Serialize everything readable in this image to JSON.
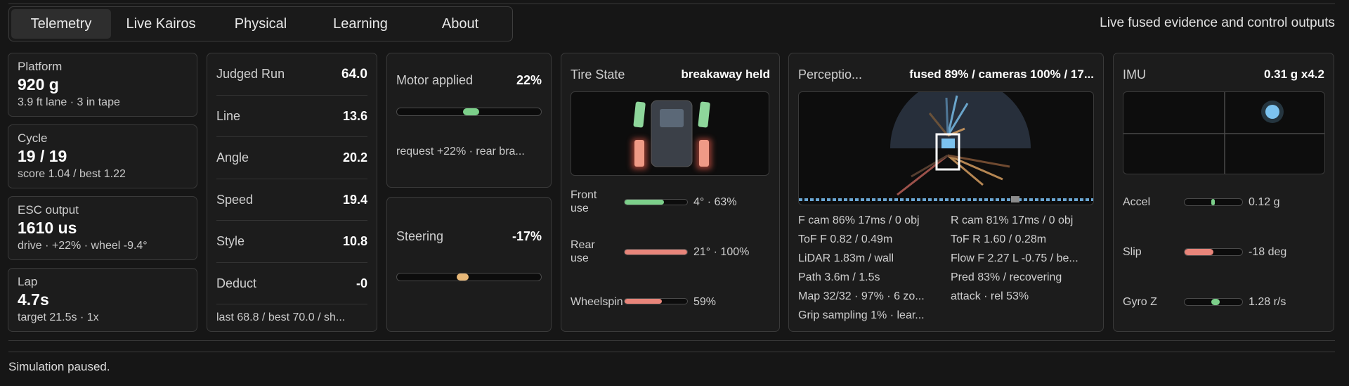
{
  "tabs": [
    "Telemetry",
    "Live Kairos",
    "Physical",
    "Learning",
    "About"
  ],
  "active_tab": "Telemetry",
  "header_subtitle": "Live fused evidence and control outputs",
  "stats": [
    {
      "label": "Platform",
      "value": "920 g",
      "detail": "3.9 ft lane · 3 in tape"
    },
    {
      "label": "Cycle",
      "value": "19 / 19",
      "detail": "score 1.04 / best 1.22"
    },
    {
      "label": "ESC output",
      "value": "1610 us",
      "detail": "drive · +22% · wheel -9.4°"
    },
    {
      "label": "Lap",
      "value": "4.7s",
      "detail": "target 21.5s · 1x"
    }
  ],
  "judged": {
    "title": "Judged Run",
    "score": "64.0",
    "rows": [
      {
        "label": "Line",
        "value": "13.6"
      },
      {
        "label": "Angle",
        "value": "20.2"
      },
      {
        "label": "Speed",
        "value": "19.4"
      },
      {
        "label": "Style",
        "value": "10.8"
      },
      {
        "label": "Deduct",
        "value": "-0"
      }
    ],
    "footer": "last 68.8 / best 70.0 / sh..."
  },
  "motor": {
    "label": "Motor applied",
    "value": "22%",
    "level": 0.22,
    "detail": "request +22% · rear bra...",
    "color": "#7ccf8a"
  },
  "steering": {
    "label": "Steering",
    "value": "-17%",
    "level": -0.17,
    "color": "#e7b878"
  },
  "tire": {
    "title": "Tire State",
    "state": "breakaway held",
    "rows": [
      {
        "label": "Front use",
        "value": "4° · 63%",
        "level": 0.63,
        "color": "#7ccf8a"
      },
      {
        "label": "Rear use",
        "value": "21° · 100%",
        "level": 1.0,
        "color": "#e8857a"
      },
      {
        "label": "Wheelspin",
        "value": "59%",
        "level": 0.59,
        "color": "#e8857a"
      }
    ]
  },
  "perception": {
    "title": "Perceptio...",
    "summary": "fused 89% / cameras 100% / 17...",
    "left": [
      "F cam 86% 17ms / 0 obj",
      "ToF F 0.82 / 0.49m",
      "LiDAR 1.83m / wall",
      "Path 3.6m / 1.5s",
      "Map 32/32 · 97% · 6 zo...",
      "Grip sampling 1% · lear..."
    ],
    "right": [
      "R cam 81% 17ms / 0 obj",
      "ToF R 1.60 / 0.28m",
      "Flow F 2.27 L -0.75 / be...",
      "Pred 83% / recovering",
      "attack · rel 53%"
    ]
  },
  "imu": {
    "title": "IMU",
    "value": "0.31 g x4.2",
    "rows": [
      {
        "label": "Accel",
        "value": "0.12 g",
        "level": 0.12,
        "color": "#7ccf8a"
      },
      {
        "label": "Slip",
        "value": "-18 deg",
        "level": -0.5,
        "color": "#e8857a"
      },
      {
        "label": "Gyro Z",
        "value": "1.28 r/s",
        "level": 0.3,
        "color": "#7ccf8a"
      }
    ]
  },
  "colors": {
    "accent_blue": "#7cc3f0",
    "good": "#7ccf8a",
    "warn": "#e8857a",
    "amber": "#e7b878"
  },
  "status": "Simulation paused."
}
